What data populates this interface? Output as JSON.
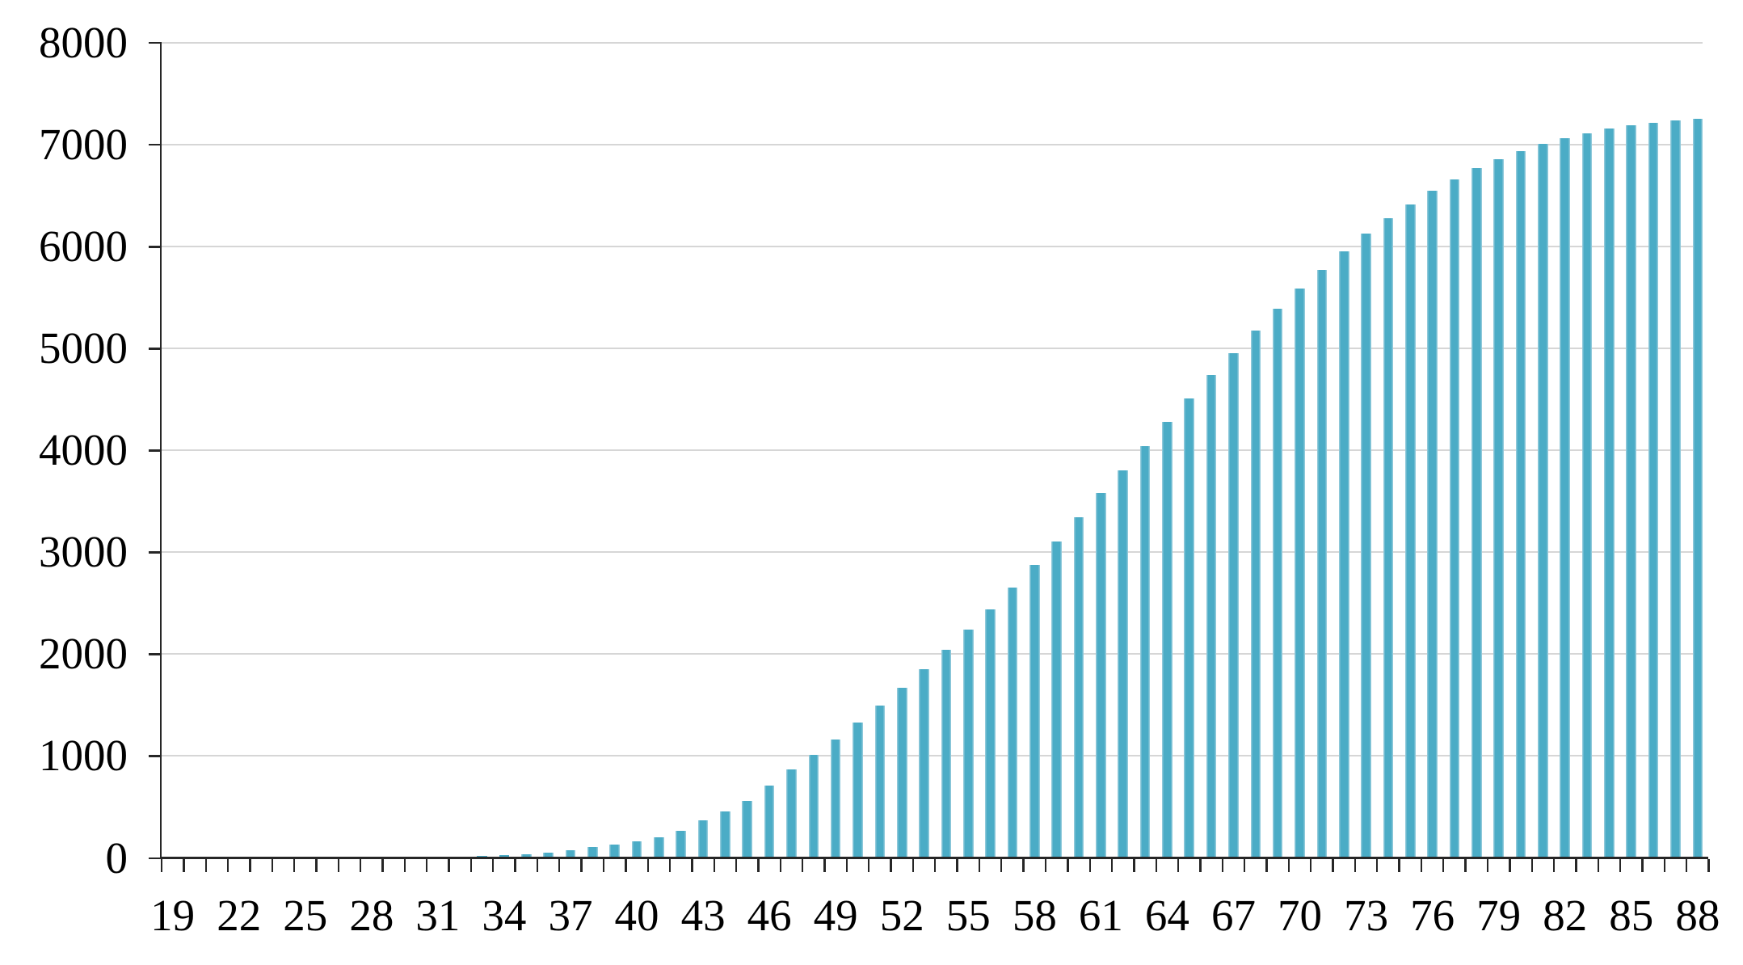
{
  "chart_data": {
    "type": "bar",
    "title": "",
    "xlabel": "",
    "ylabel": "",
    "x": [
      19,
      20,
      21,
      22,
      23,
      24,
      25,
      26,
      27,
      28,
      29,
      30,
      31,
      32,
      33,
      34,
      35,
      36,
      37,
      38,
      39,
      40,
      41,
      42,
      43,
      44,
      45,
      46,
      47,
      48,
      49,
      50,
      51,
      52,
      53,
      54,
      55,
      56,
      57,
      58,
      59,
      60,
      61,
      62,
      63,
      64,
      65,
      66,
      67,
      68,
      69,
      70,
      71,
      72,
      73,
      74,
      75,
      76,
      77,
      78,
      79,
      80,
      81,
      82,
      83,
      84,
      85,
      86,
      87,
      88
    ],
    "values": [
      0,
      0,
      0,
      0,
      0,
      0,
      0,
      1,
      1,
      2,
      3,
      5,
      10,
      14,
      18,
      25,
      35,
      50,
      75,
      105,
      133,
      162,
      200,
      265,
      368,
      460,
      563,
      712,
      868,
      1008,
      1161,
      1325,
      1492,
      1669,
      1855,
      2040,
      2238,
      2437,
      2654,
      2873,
      3106,
      3344,
      3580,
      3807,
      4042,
      4280,
      4510,
      4740,
      4957,
      5175,
      5387,
      5590,
      5770,
      5955,
      6125,
      6276,
      6413,
      6548,
      6659,
      6768,
      6858,
      6937,
      7008,
      7066,
      7114,
      7159,
      7191,
      7212,
      7238,
      7257
    ],
    "x_tick_labels": [
      "19",
      "22",
      "25",
      "28",
      "31",
      "34",
      "37",
      "40",
      "43",
      "46",
      "49",
      "52",
      "55",
      "58",
      "61",
      "64",
      "67",
      "70",
      "73",
      "76",
      "79",
      "82",
      "85",
      "88"
    ],
    "y_tick_labels": [
      "0",
      "1000",
      "2000",
      "3000",
      "4000",
      "5000",
      "6000",
      "7000",
      "8000"
    ],
    "y_ticks": [
      0,
      1000,
      2000,
      3000,
      4000,
      5000,
      6000,
      7000,
      8000
    ],
    "ylim": [
      0,
      8000
    ],
    "grid": "horizontal",
    "legend": "none"
  },
  "colors": {
    "bar_fill": "#4bacc6",
    "bar_edge": "#8fc9da",
    "gridline": "#d6d6d6",
    "axis": "#262626",
    "label": "#000000",
    "background": "#ffffff"
  }
}
